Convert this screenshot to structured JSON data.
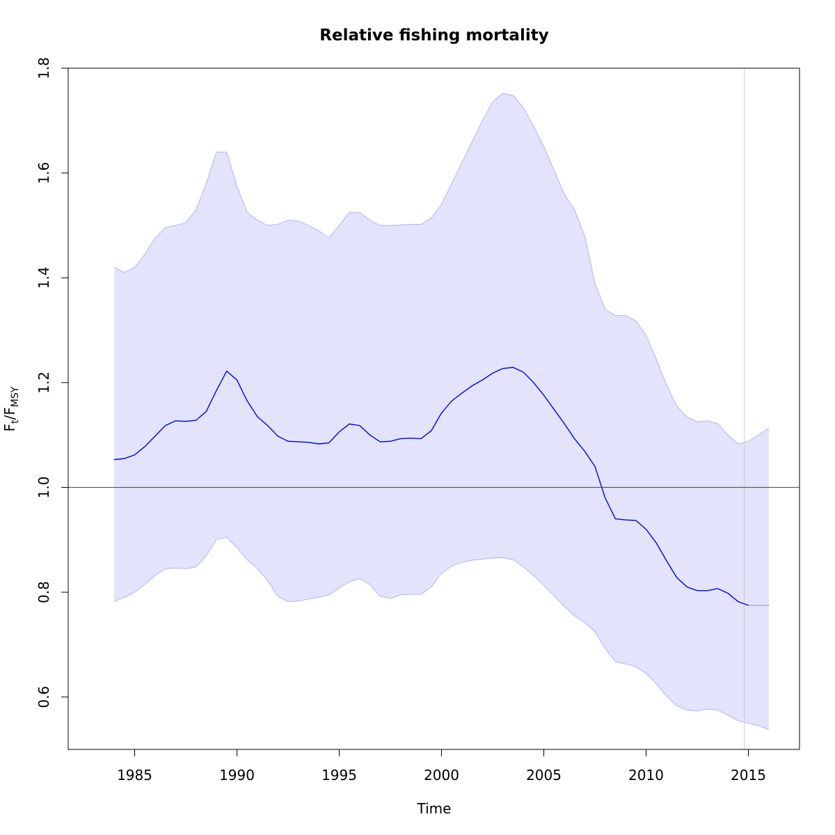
{
  "chart_data": {
    "type": "line",
    "title": "Relative fishing mortality",
    "xlabel": "Time",
    "ylabel": {
      "main": "F",
      "sub1": "t",
      "slash": "/F",
      "sub2": "MSY"
    },
    "xlim": [
      1981.75,
      2017.5
    ],
    "ylim": [
      0.5,
      1.8
    ],
    "xticks": [
      1985,
      1990,
      1995,
      2000,
      2005,
      2010,
      2015
    ],
    "xtick_labels": [
      "1985",
      "1990",
      "1995",
      "2000",
      "2005",
      "2010",
      "2015"
    ],
    "yticks": [
      0.6,
      0.8,
      1.0,
      1.2,
      1.4,
      1.6,
      1.8
    ],
    "ytick_labels": [
      "0.6",
      "0.8",
      "1.0",
      "1.2",
      "1.4",
      "1.6",
      "1.8"
    ],
    "reference_line_y": 1.0,
    "vertical_marker_x": 2014.8,
    "colors": {
      "band_fill": "#e3e3fc",
      "band_edge": "#b4b4f0",
      "estimate_line": "#0000ee",
      "reference_line": "#555555",
      "vertical_marker": "#cccccc",
      "axes": "#000000"
    },
    "series": [
      {
        "role": "estimate",
        "x": [
          1984.0,
          1984.5,
          1985.0,
          1985.5,
          1986.0,
          1986.5,
          1987.0,
          1987.5,
          1988.0,
          1988.5,
          1989.0,
          1989.5,
          1990.0,
          1990.5,
          1991.0,
          1991.5,
          1992.0,
          1992.5,
          1993.0,
          1993.5,
          1994.0,
          1994.5,
          1995.0,
          1995.5,
          1996.0,
          1996.5,
          1997.0,
          1997.5,
          1998.0,
          1998.5,
          1999.0,
          1999.5,
          2000.0,
          2000.5,
          2001.0,
          2001.5,
          2002.0,
          2002.5,
          2003.0,
          2003.5,
          2004.0,
          2004.5,
          2005.0,
          2005.5,
          2006.0,
          2006.5,
          2007.0,
          2007.5,
          2008.0,
          2008.5,
          2009.0,
          2009.5,
          2010.0,
          2010.5,
          2011.0,
          2011.5,
          2012.0,
          2012.5,
          2013.0,
          2013.5,
          2014.0,
          2014.5,
          2015.0
        ],
        "y": [
          1.053,
          1.055,
          1.062,
          1.078,
          1.098,
          1.118,
          1.127,
          1.126,
          1.128,
          1.145,
          1.185,
          1.222,
          1.205,
          1.165,
          1.135,
          1.118,
          1.098,
          1.088,
          1.087,
          1.086,
          1.083,
          1.085,
          1.106,
          1.121,
          1.118,
          1.1,
          1.087,
          1.088,
          1.093,
          1.094,
          1.093,
          1.108,
          1.142,
          1.165,
          1.18,
          1.194,
          1.205,
          1.218,
          1.227,
          1.229,
          1.22,
          1.2,
          1.176,
          1.149,
          1.122,
          1.093,
          1.069,
          1.04,
          0.98,
          0.94,
          0.938,
          0.937,
          0.92,
          0.894,
          0.86,
          0.828,
          0.81,
          0.803,
          0.803,
          0.807,
          0.798,
          0.782,
          0.775
        ]
      },
      {
        "role": "prediction",
        "x": [
          2015.0,
          2016.0
        ],
        "y": [
          0.775,
          0.775
        ]
      },
      {
        "role": "upper",
        "x": [
          1984.0,
          1984.5,
          1985.0,
          1985.5,
          1986.0,
          1986.5,
          1987.0,
          1987.5,
          1988.0,
          1988.5,
          1989.0,
          1989.5,
          1990.0,
          1990.5,
          1991.0,
          1991.5,
          1992.0,
          1992.5,
          1993.0,
          1993.5,
          1994.0,
          1994.5,
          1995.0,
          1995.5,
          1996.0,
          1996.5,
          1997.0,
          1997.5,
          1998.0,
          1998.5,
          1999.0,
          1999.5,
          2000.0,
          2000.5,
          2001.0,
          2001.5,
          2002.0,
          2002.5,
          2003.0,
          2003.5,
          2004.0,
          2004.5,
          2005.0,
          2005.5,
          2006.0,
          2006.5,
          2007.0,
          2007.5,
          2008.0,
          2008.5,
          2009.0,
          2009.5,
          2010.0,
          2010.5,
          2011.0,
          2011.5,
          2012.0,
          2012.5,
          2013.0,
          2013.5,
          2014.0,
          2014.5,
          2015.0,
          2015.5,
          2016.0
        ],
        "y": [
          1.42,
          1.41,
          1.42,
          1.445,
          1.476,
          1.496,
          1.5,
          1.505,
          1.53,
          1.58,
          1.64,
          1.64,
          1.575,
          1.525,
          1.51,
          1.5,
          1.502,
          1.51,
          1.508,
          1.5,
          1.49,
          1.476,
          1.5,
          1.525,
          1.525,
          1.51,
          1.5,
          1.5,
          1.501,
          1.502,
          1.502,
          1.514,
          1.54,
          1.58,
          1.62,
          1.66,
          1.7,
          1.736,
          1.752,
          1.748,
          1.725,
          1.69,
          1.65,
          1.605,
          1.56,
          1.53,
          1.48,
          1.39,
          1.34,
          1.328,
          1.328,
          1.318,
          1.29,
          1.245,
          1.195,
          1.155,
          1.135,
          1.125,
          1.127,
          1.122,
          1.1,
          1.083,
          1.088,
          1.1,
          1.113
        ]
      },
      {
        "role": "lower",
        "x": [
          1984.0,
          1984.5,
          1985.0,
          1985.5,
          1986.0,
          1986.5,
          1987.0,
          1987.5,
          1988.0,
          1988.5,
          1989.0,
          1989.5,
          1990.0,
          1990.5,
          1991.0,
          1991.5,
          1992.0,
          1992.5,
          1993.0,
          1993.5,
          1994.0,
          1994.5,
          1995.0,
          1995.5,
          1996.0,
          1996.5,
          1997.0,
          1997.5,
          1998.0,
          1998.5,
          1999.0,
          1999.5,
          2000.0,
          2000.5,
          2001.0,
          2001.5,
          2002.0,
          2002.5,
          2003.0,
          2003.5,
          2004.0,
          2004.5,
          2005.0,
          2005.5,
          2006.0,
          2006.5,
          2007.0,
          2007.5,
          2008.0,
          2008.5,
          2009.0,
          2009.5,
          2010.0,
          2010.5,
          2011.0,
          2011.5,
          2012.0,
          2012.5,
          2013.0,
          2013.5,
          2014.0,
          2014.5,
          2015.0,
          2015.5,
          2016.0
        ],
        "y": [
          0.782,
          0.79,
          0.8,
          0.815,
          0.832,
          0.845,
          0.846,
          0.845,
          0.848,
          0.87,
          0.9,
          0.905,
          0.885,
          0.862,
          0.845,
          0.822,
          0.792,
          0.782,
          0.783,
          0.787,
          0.79,
          0.795,
          0.808,
          0.82,
          0.826,
          0.815,
          0.792,
          0.788,
          0.795,
          0.796,
          0.796,
          0.81,
          0.836,
          0.85,
          0.857,
          0.861,
          0.863,
          0.865,
          0.866,
          0.862,
          0.848,
          0.832,
          0.813,
          0.793,
          0.773,
          0.755,
          0.742,
          0.725,
          0.693,
          0.667,
          0.663,
          0.658,
          0.645,
          0.625,
          0.602,
          0.583,
          0.575,
          0.573,
          0.577,
          0.575,
          0.565,
          0.555,
          0.55,
          0.545,
          0.538
        ]
      }
    ]
  }
}
